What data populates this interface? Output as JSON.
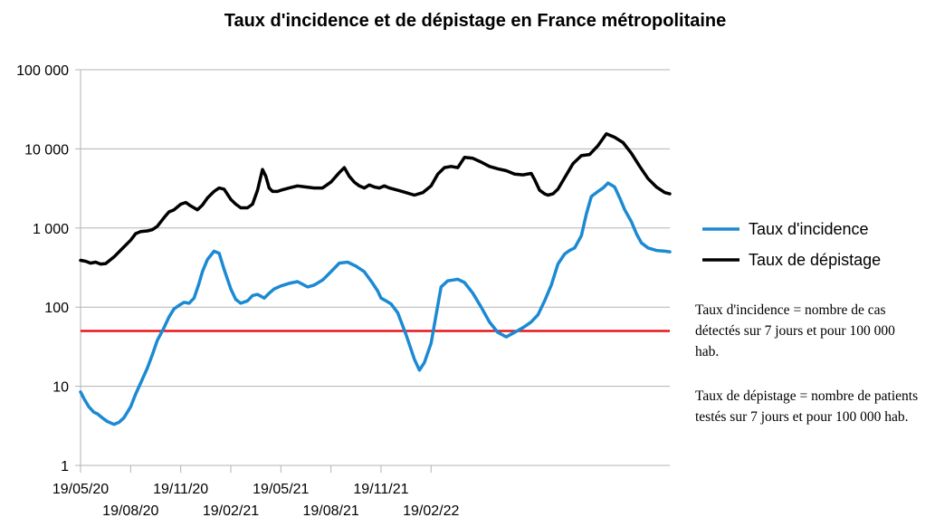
{
  "chart_data": {
    "type": "line",
    "title": "Taux d'incidence et de dépistage en France métropolitaine",
    "yscale": "log",
    "ylim": [
      1,
      100000
    ],
    "y_ticks": [
      {
        "value": 100000,
        "label": "100 000"
      },
      {
        "value": 10000,
        "label": "10 000"
      },
      {
        "value": 1000,
        "label": "1 000"
      },
      {
        "value": 100,
        "label": "100"
      },
      {
        "value": 10,
        "label": "10"
      },
      {
        "value": 1,
        "label": "1"
      }
    ],
    "x_ticks": [
      {
        "label": "19/05/20",
        "row": 0
      },
      {
        "label": "19/08/20",
        "row": 1
      },
      {
        "label": "19/11/20",
        "row": 0
      },
      {
        "label": "19/02/21",
        "row": 1
      },
      {
        "label": "19/05/21",
        "row": 0
      },
      {
        "label": "19/08/21",
        "row": 1
      },
      {
        "label": "19/11/21",
        "row": 0
      },
      {
        "label": "19/02/22",
        "row": 1
      }
    ],
    "x_unit": "months since 19/05/20",
    "xlim": [
      0,
      35.3
    ],
    "threshold": {
      "value": 50,
      "color": "#e8151b"
    },
    "series": [
      {
        "name": "Taux d'incidence",
        "color": "#1b8ad3",
        "x": [
          0,
          0.2,
          0.5,
          0.8,
          1.0,
          1.3,
          1.6,
          2.0,
          2.3,
          2.6,
          3.0,
          3.3,
          3.6,
          4.0,
          4.3,
          4.6,
          5.0,
          5.3,
          5.6,
          5.9,
          6.2,
          6.5,
          6.8,
          7.1,
          7.3,
          7.6,
          8.0,
          8.3,
          8.6,
          9.0,
          9.3,
          9.6,
          10.0,
          10.3,
          10.6,
          11.0,
          11.3,
          11.6,
          12.0,
          12.5,
          13.0,
          13.3,
          13.6,
          14.0,
          14.5,
          15.0,
          15.5,
          16.0,
          16.5,
          17.0,
          17.5,
          17.8,
          18.0,
          18.3,
          18.6,
          19.0,
          19.5,
          20.0,
          20.3,
          20.6,
          21.0,
          21.3,
          21.6,
          22.0,
          22.3,
          22.6,
          23.0,
          23.5,
          24.0,
          24.5,
          25.0,
          25.5,
          26.0,
          26.5,
          27.0,
          27.4,
          27.8,
          28.2,
          28.6,
          29.0,
          29.3,
          29.6,
          30.0,
          30.3,
          30.6,
          31.0,
          31.3,
          31.6,
          32.0,
          32.3,
          32.6,
          33.0,
          33.3,
          33.6,
          34.0,
          34.5,
          35.0,
          35.3
        ],
        "values": [
          8.5,
          7,
          5.5,
          4.7,
          4.5,
          4.0,
          3.6,
          3.3,
          3.5,
          4.0,
          5.5,
          8,
          11,
          17,
          25,
          38,
          55,
          75,
          95,
          105,
          115,
          112,
          130,
          200,
          280,
          400,
          510,
          480,
          300,
          170,
          125,
          112,
          120,
          140,
          145,
          130,
          150,
          170,
          185,
          200,
          210,
          195,
          180,
          190,
          220,
          280,
          360,
          370,
          330,
          280,
          200,
          160,
          130,
          120,
          110,
          85,
          45,
          22,
          16,
          20,
          35,
          80,
          180,
          215,
          220,
          225,
          205,
          150,
          100,
          65,
          48,
          42,
          48,
          55,
          65,
          80,
          120,
          190,
          350,
          470,
          520,
          560,
          800,
          1500,
          2500,
          2900,
          3200,
          3700,
          3300,
          2400,
          1700,
          1200,
          850,
          650,
          560,
          520,
          510,
          500
        ]
      },
      {
        "name": "Taux de dépistage",
        "color": "#000000",
        "x": [
          0,
          0.3,
          0.6,
          0.9,
          1.2,
          1.5,
          2.0,
          2.5,
          3.0,
          3.3,
          3.6,
          4.0,
          4.3,
          4.6,
          5.0,
          5.3,
          5.6,
          6.0,
          6.3,
          6.6,
          7.0,
          7.3,
          7.6,
          8.0,
          8.3,
          8.6,
          9.0,
          9.3,
          9.6,
          10.0,
          10.3,
          10.6,
          10.9,
          11.1,
          11.3,
          11.5,
          11.8,
          12.0,
          12.5,
          13.0,
          13.5,
          14.0,
          14.5,
          15.0,
          15.5,
          15.8,
          16.1,
          16.4,
          16.7,
          17.0,
          17.3,
          17.6,
          17.9,
          18.2,
          18.5,
          19.0,
          19.5,
          20.0,
          20.5,
          21.0,
          21.4,
          21.8,
          22.2,
          22.6,
          23.0,
          23.5,
          24.0,
          24.5,
          25.0,
          25.5,
          26.0,
          26.5,
          27.0,
          27.2,
          27.5,
          27.8,
          28.0,
          28.3,
          28.6,
          29.0,
          29.5,
          30.0,
          30.5,
          31.0,
          31.5,
          32.0,
          32.5,
          33.0,
          33.5,
          34.0,
          34.5,
          35.0,
          35.3
        ],
        "values": [
          390,
          380,
          360,
          370,
          350,
          355,
          430,
          550,
          700,
          850,
          900,
          920,
          950,
          1050,
          1350,
          1600,
          1700,
          2000,
          2100,
          1900,
          1700,
          1950,
          2400,
          2900,
          3200,
          3100,
          2300,
          2000,
          1800,
          1800,
          2000,
          3000,
          5500,
          4500,
          3200,
          2900,
          2900,
          3000,
          3200,
          3400,
          3300,
          3200,
          3200,
          3800,
          5000,
          5800,
          4500,
          3800,
          3400,
          3200,
          3500,
          3300,
          3200,
          3400,
          3200,
          3000,
          2800,
          2600,
          2800,
          3400,
          4800,
          5800,
          6000,
          5800,
          7800,
          7600,
          6800,
          6000,
          5600,
          5300,
          4800,
          4700,
          4900,
          4100,
          3000,
          2700,
          2600,
          2700,
          3100,
          4300,
          6500,
          8200,
          8500,
          11000,
          15500,
          14000,
          12000,
          8800,
          6000,
          4200,
          3300,
          2800,
          2700
        ]
      }
    ],
    "legend": {
      "position": "right",
      "entries": [
        "Taux d'incidence",
        "Taux de dépistage"
      ]
    }
  },
  "notes": {
    "incidence": "Taux d'incidence = nombre de cas détectés sur 7 jours et pour 100 000 hab.",
    "depistage": "Taux de dépistage = nombre de patients testés sur 7 jours et pour 100 000 hab."
  }
}
